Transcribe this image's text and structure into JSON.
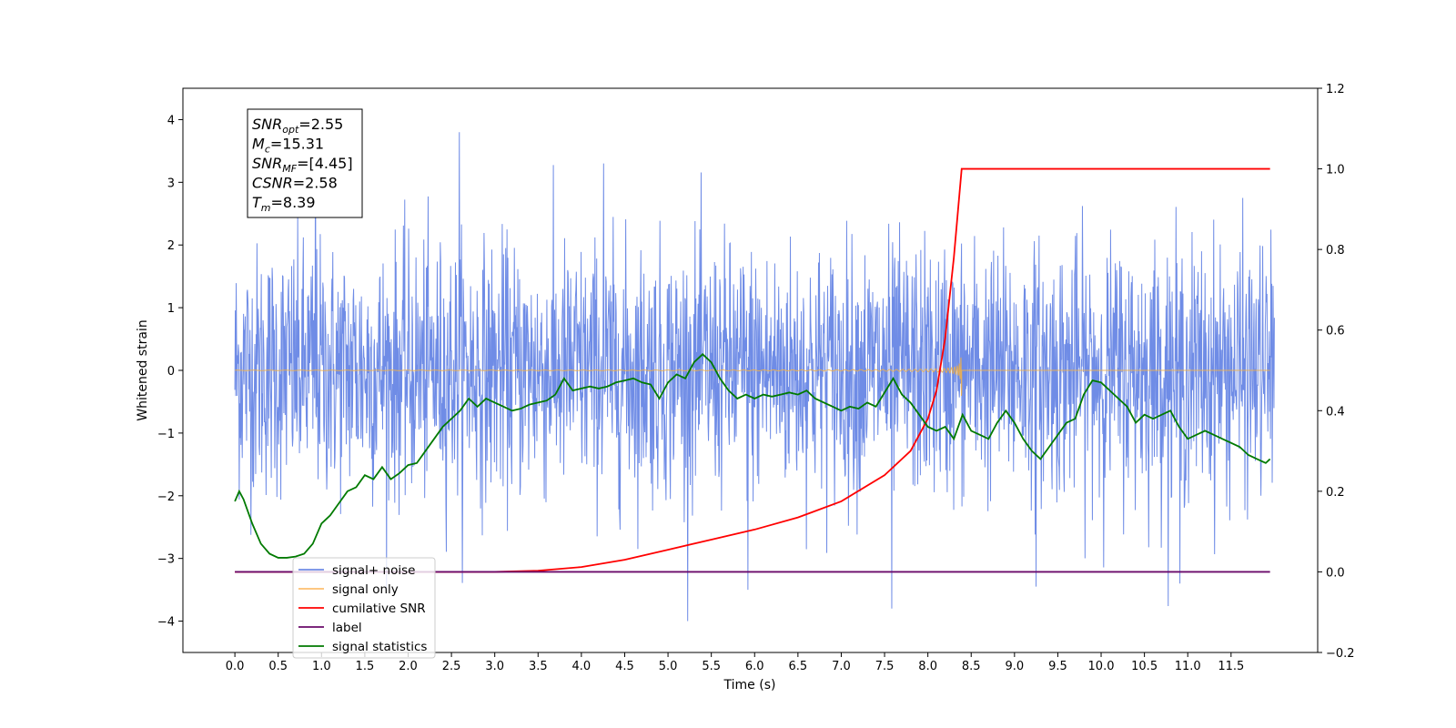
{
  "chart_data": {
    "type": "line",
    "xlabel": "Time (s)",
    "ylabel_left": "Whitened strain",
    "ylabel_right": "",
    "xlim": [
      -0.6,
      12.5
    ],
    "ylim_left": [
      -4.5,
      4.5
    ],
    "ylim_right": [
      -0.2,
      1.2
    ],
    "x_ticks": [
      0.0,
      0.5,
      1.0,
      1.5,
      2.0,
      2.5,
      3.0,
      3.5,
      4.0,
      4.5,
      5.0,
      5.5,
      6.0,
      6.5,
      7.0,
      7.5,
      8.0,
      8.5,
      9.0,
      9.5,
      10.0,
      10.5,
      11.0,
      11.5
    ],
    "x_tick_labels": [
      "0.0",
      "0.5",
      "1.0",
      "1.5",
      "2.0",
      "2.5",
      "3.0",
      "3.5",
      "4.0",
      "4.5",
      "5.0",
      "5.5",
      "6.0",
      "6.5",
      "7.0",
      "7.5",
      "8.0",
      "8.5",
      "9.0",
      "9.5",
      "10.0",
      "10.5",
      "11.0",
      "11.5"
    ],
    "y_ticks_left": [
      -4,
      -3,
      -2,
      -1,
      0,
      1,
      2,
      3,
      4
    ],
    "y_tick_labels_left": [
      "−4",
      "−3",
      "−2",
      "−1",
      "0",
      "1",
      "2",
      "3",
      "4"
    ],
    "y_ticks_right": [
      -0.2,
      0.0,
      0.2,
      0.4,
      0.6,
      0.8,
      1.0,
      1.2
    ],
    "y_tick_labels_right": [
      "−0.2",
      "0.0",
      "0.2",
      "0.4",
      "0.6",
      "0.8",
      "1.0",
      "1.2"
    ],
    "grid": false,
    "legend_position": "lower-left",
    "annotation": {
      "lines": [
        {
          "main": "SNR",
          "sub": "opt",
          "value": "=2.55"
        },
        {
          "main": "M",
          "sub": "c",
          "value": "=15.31"
        },
        {
          "main": "SNR",
          "sub": "MF",
          "value": "=[4.45]"
        },
        {
          "main": "CSNR",
          "sub": "",
          "value": "=2.58"
        },
        {
          "main": "T",
          "sub": "m",
          "value": "=8.39"
        }
      ]
    },
    "series": [
      {
        "name": "signal+ noise",
        "axis": "left",
        "color": "#6f8ce6",
        "style": "noise",
        "x_range": [
          0.0,
          12.0
        ],
        "std": 1.0,
        "peak_values": [
          4.1,
          3.8,
          3.3,
          -3.5,
          -3.8,
          -3.45,
          -3.4
        ]
      },
      {
        "name": "signal only",
        "axis": "left",
        "color": "#f5b041",
        "style": "chirp",
        "x_range": [
          0.0,
          8.39
        ],
        "max_amplitude": 0.45
      },
      {
        "name": "cumilative SNR",
        "axis": "right",
        "color": "#ff0000",
        "x": [
          0.0,
          2.0,
          3.0,
          3.5,
          4.0,
          4.5,
          5.0,
          5.5,
          6.0,
          6.5,
          7.0,
          7.5,
          7.8,
          8.0,
          8.1,
          8.2,
          8.3,
          8.39,
          8.4,
          11.95
        ],
        "y": [
          0.0,
          0.0,
          0.0,
          0.003,
          0.012,
          0.03,
          0.055,
          0.08,
          0.105,
          0.135,
          0.175,
          0.24,
          0.3,
          0.38,
          0.45,
          0.58,
          0.78,
          1.0,
          1.0,
          1.0
        ]
      },
      {
        "name": "label",
        "axis": "right",
        "color": "#6a0a6a",
        "x": [
          0.0,
          11.95
        ],
        "y": [
          0.0,
          0.0
        ]
      },
      {
        "name": "signal statistics",
        "axis": "right",
        "color": "#007a00",
        "x": [
          0.0,
          0.05,
          0.1,
          0.2,
          0.3,
          0.4,
          0.5,
          0.6,
          0.7,
          0.8,
          0.9,
          1.0,
          1.1,
          1.2,
          1.3,
          1.4,
          1.5,
          1.6,
          1.7,
          1.8,
          1.9,
          2.0,
          2.1,
          2.2,
          2.3,
          2.4,
          2.5,
          2.6,
          2.7,
          2.8,
          2.9,
          3.0,
          3.1,
          3.2,
          3.3,
          3.4,
          3.5,
          3.6,
          3.7,
          3.8,
          3.9,
          4.0,
          4.1,
          4.2,
          4.3,
          4.4,
          4.5,
          4.6,
          4.7,
          4.8,
          4.9,
          5.0,
          5.1,
          5.2,
          5.3,
          5.4,
          5.5,
          5.6,
          5.7,
          5.8,
          5.9,
          6.0,
          6.1,
          6.2,
          6.3,
          6.4,
          6.5,
          6.6,
          6.7,
          6.8,
          6.9,
          7.0,
          7.1,
          7.2,
          7.3,
          7.4,
          7.5,
          7.6,
          7.7,
          7.8,
          7.9,
          8.0,
          8.1,
          8.2,
          8.3,
          8.4,
          8.5,
          8.6,
          8.7,
          8.8,
          8.9,
          9.0,
          9.1,
          9.2,
          9.3,
          9.4,
          9.5,
          9.6,
          9.7,
          9.8,
          9.9,
          10.0,
          10.1,
          10.2,
          10.3,
          10.4,
          10.5,
          10.6,
          10.7,
          10.8,
          10.9,
          11.0,
          11.1,
          11.2,
          11.3,
          11.4,
          11.5,
          11.6,
          11.7,
          11.8,
          11.9,
          11.95
        ],
        "y": [
          0.175,
          0.2,
          0.18,
          0.12,
          0.07,
          0.045,
          0.035,
          0.035,
          0.038,
          0.045,
          0.07,
          0.12,
          0.14,
          0.17,
          0.2,
          0.21,
          0.24,
          0.23,
          0.26,
          0.23,
          0.245,
          0.265,
          0.27,
          0.3,
          0.33,
          0.36,
          0.38,
          0.4,
          0.43,
          0.41,
          0.43,
          0.42,
          0.41,
          0.4,
          0.405,
          0.415,
          0.42,
          0.425,
          0.44,
          0.48,
          0.45,
          0.455,
          0.46,
          0.455,
          0.46,
          0.47,
          0.475,
          0.48,
          0.47,
          0.465,
          0.43,
          0.47,
          0.49,
          0.48,
          0.52,
          0.54,
          0.52,
          0.48,
          0.45,
          0.43,
          0.44,
          0.43,
          0.44,
          0.435,
          0.44,
          0.445,
          0.44,
          0.45,
          0.43,
          0.42,
          0.41,
          0.4,
          0.41,
          0.405,
          0.42,
          0.41,
          0.445,
          0.48,
          0.44,
          0.42,
          0.39,
          0.36,
          0.35,
          0.36,
          0.33,
          0.39,
          0.35,
          0.34,
          0.33,
          0.37,
          0.4,
          0.37,
          0.33,
          0.3,
          0.28,
          0.31,
          0.34,
          0.37,
          0.38,
          0.44,
          0.475,
          0.47,
          0.45,
          0.43,
          0.41,
          0.37,
          0.39,
          0.38,
          0.39,
          0.4,
          0.36,
          0.33,
          0.34,
          0.35,
          0.34,
          0.33,
          0.32,
          0.31,
          0.29,
          0.28,
          0.27,
          0.28
        ]
      }
    ]
  },
  "legend": {
    "items": [
      {
        "label": "signal+ noise",
        "color": "#6f8ce6"
      },
      {
        "label": "signal only",
        "color": "#fdbf6f"
      },
      {
        "label": "cumilative SNR",
        "color": "#ff0000"
      },
      {
        "label": "label",
        "color": "#6a0a6a"
      },
      {
        "label": "signal statistics",
        "color": "#007a00"
      }
    ]
  }
}
